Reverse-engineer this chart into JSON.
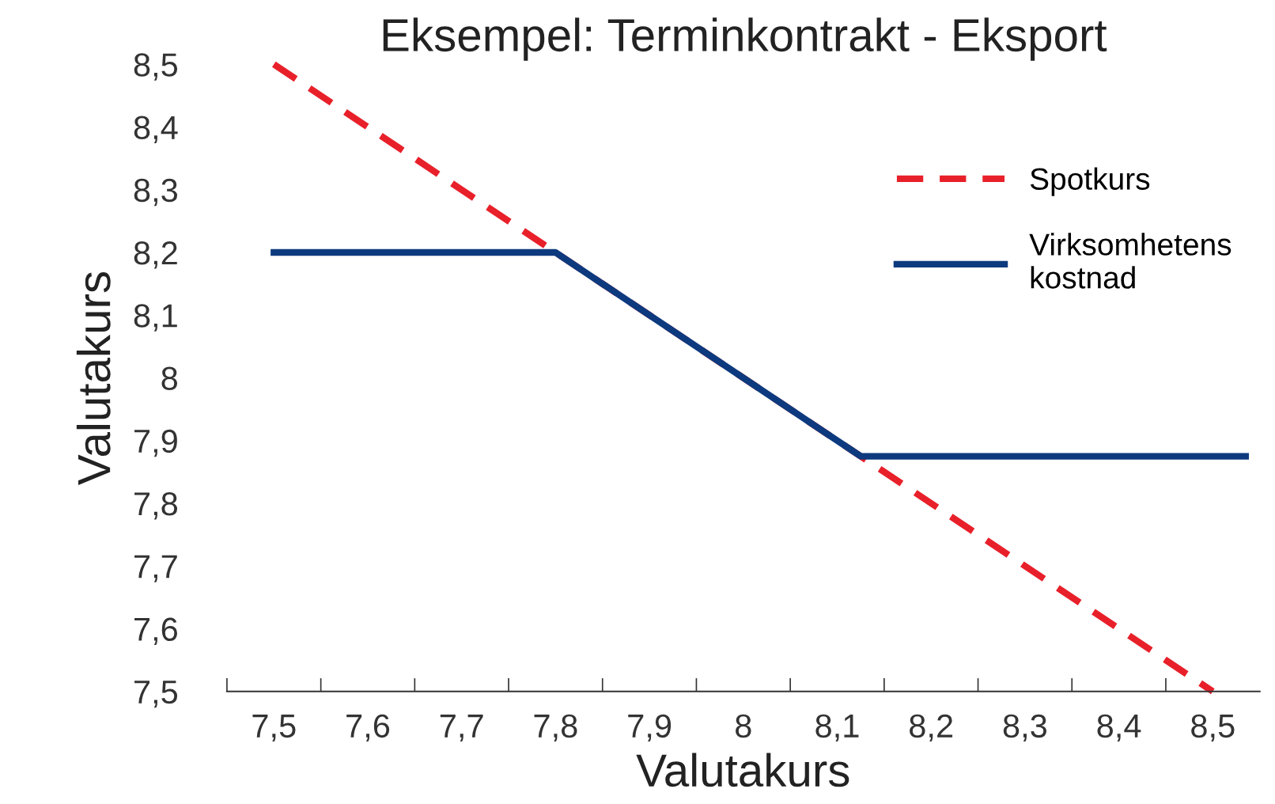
{
  "chart_data": {
    "type": "line",
    "title": "Eksempel: Terminkontrakt - Eksport",
    "xlabel": "Valutakurs",
    "ylabel": "Valutakurs",
    "series": [
      {
        "name": "Spotkurs",
        "color": "#e8202a",
        "line_style": "dashed",
        "x": [
          7.5,
          8.5
        ],
        "values": [
          8.5,
          7.5
        ]
      },
      {
        "name": "Virksomhetens\nkostnad",
        "color": "#0d3a7e",
        "line_style": "solid",
        "x": [
          7.5,
          7.8,
          8.125,
          8.535
        ],
        "values": [
          8.2,
          8.2,
          7.875,
          7.875
        ]
      }
    ],
    "xlim": [
      7.45,
      8.55
    ],
    "xticks": [
      {
        "value": 7.45,
        "label": null
      },
      {
        "value": 7.5,
        "label": "7,5"
      },
      {
        "value": 7.55,
        "label": null
      },
      {
        "value": 7.6,
        "label": "7,6"
      },
      {
        "value": 7.65,
        "label": null
      },
      {
        "value": 7.7,
        "label": "7,7"
      },
      {
        "value": 7.75,
        "label": null
      },
      {
        "value": 7.8,
        "label": "7,8"
      },
      {
        "value": 7.85,
        "label": null
      },
      {
        "value": 7.9,
        "label": "7,9"
      },
      {
        "value": 7.95,
        "label": null
      },
      {
        "value": 8.0,
        "label": "8"
      },
      {
        "value": 8.05,
        "label": null
      },
      {
        "value": 8.1,
        "label": "8,1"
      },
      {
        "value": 8.15,
        "label": null
      },
      {
        "value": 8.2,
        "label": "8,2"
      },
      {
        "value": 8.25,
        "label": null
      },
      {
        "value": 8.3,
        "label": "8,3"
      },
      {
        "value": 8.35,
        "label": null
      },
      {
        "value": 8.4,
        "label": "8,4"
      },
      {
        "value": 8.45,
        "label": null
      },
      {
        "value": 8.5,
        "label": "8,5"
      }
    ],
    "ylim": [
      7.5,
      8.5
    ],
    "yticks": [
      {
        "value": 7.5,
        "label": "7,5"
      },
      {
        "value": 7.6,
        "label": "7,6"
      },
      {
        "value": 7.7,
        "label": "7,7"
      },
      {
        "value": 7.8,
        "label": "7,8"
      },
      {
        "value": 7.9,
        "label": "7,9"
      },
      {
        "value": 8.0,
        "label": "8"
      },
      {
        "value": 8.1,
        "label": "8,1"
      },
      {
        "value": 8.2,
        "label": "8,2"
      },
      {
        "value": 8.3,
        "label": "8,3"
      },
      {
        "value": 8.4,
        "label": "8,4"
      },
      {
        "value": 8.5,
        "label": "8,5"
      }
    ],
    "grid": false,
    "legend": "upper right",
    "marker": "none"
  }
}
